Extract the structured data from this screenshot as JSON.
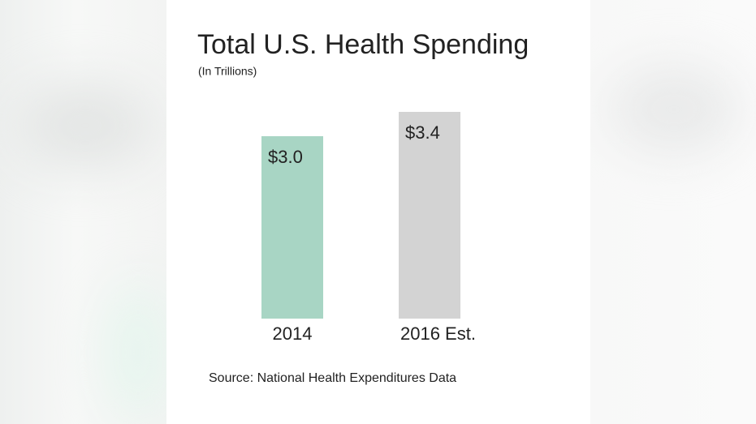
{
  "chart_data": {
    "type": "bar",
    "title": "Total U.S. Health Spending",
    "subtitle": "(In Trillions)",
    "categories": [
      "2014",
      "2016 Est."
    ],
    "values": [
      3.0,
      3.4
    ],
    "value_labels": [
      "$3.0",
      "$3.4"
    ],
    "colors": [
      "#a8d5c4",
      "#d3d3d3"
    ],
    "source": "Source:  National Health Expenditures Data"
  }
}
